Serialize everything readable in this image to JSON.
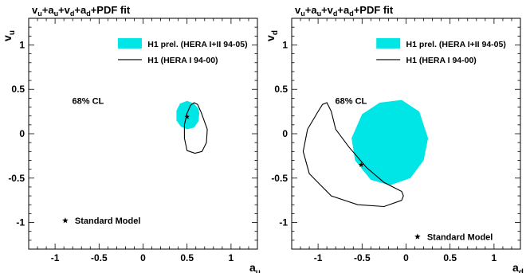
{
  "chart_data": [
    {
      "type": "scatter",
      "title": {
        "base": "v",
        "sub1": "u",
        "mid1": "+a",
        "sub2": "u",
        "mid2": "+v",
        "sub3": "d",
        "mid3": "+a",
        "sub4": "d",
        "tail": "+PDF fit"
      },
      "xlabel": {
        "base": "a",
        "sub": "u"
      },
      "ylabel": {
        "base": "v",
        "sub": "u"
      },
      "xlim": [
        -1.3,
        1.3
      ],
      "ylim": [
        -1.3,
        1.3
      ],
      "xticks": [
        {
          "v": -1,
          "label": "-1"
        },
        {
          "v": -0.5,
          "label": "-0.5"
        },
        {
          "v": 0,
          "label": "0"
        },
        {
          "v": 0.5,
          "label": "0.5"
        },
        {
          "v": 1,
          "label": "1"
        }
      ],
      "yticks": [
        {
          "v": -1,
          "label": "-1"
        },
        {
          "v": -0.5,
          "label": "-0.5"
        },
        {
          "v": 0,
          "label": "0"
        },
        {
          "v": 0.5,
          "label": "0.5"
        },
        {
          "v": 1,
          "label": "1"
        }
      ],
      "cl_label": "68% CL",
      "legend": [
        {
          "label": "H1 prel. (HERA I+II 94-05)",
          "style": "filled",
          "color": "#00e5e5"
        },
        {
          "label": "H1 (HERA I 94-00)",
          "style": "line",
          "color": "#000000"
        }
      ],
      "sm_label": "Standard Model",
      "sm_point": {
        "x": 0.5,
        "y": 0.19
      },
      "filled_contour": {
        "color": "#00e5e5",
        "points": [
          [
            0.64,
            0.23
          ],
          [
            0.63,
            0.14
          ],
          [
            0.58,
            0.07
          ],
          [
            0.5,
            0.05
          ],
          [
            0.43,
            0.08
          ],
          [
            0.38,
            0.15
          ],
          [
            0.38,
            0.26
          ],
          [
            0.42,
            0.34
          ],
          [
            0.5,
            0.37
          ],
          [
            0.58,
            0.34
          ],
          [
            0.63,
            0.28
          ]
        ]
      },
      "line_contour": {
        "color": "#000000",
        "points": [
          [
            0.58,
            0.35
          ],
          [
            0.62,
            0.33
          ],
          [
            0.66,
            0.24
          ],
          [
            0.73,
            0.05
          ],
          [
            0.72,
            -0.1
          ],
          [
            0.67,
            -0.2
          ],
          [
            0.59,
            -0.22
          ],
          [
            0.5,
            -0.19
          ],
          [
            0.47,
            -0.05
          ],
          [
            0.47,
            0.1
          ],
          [
            0.5,
            0.23
          ],
          [
            0.54,
            0.32
          ]
        ]
      }
    },
    {
      "type": "scatter",
      "title": {
        "base": "v",
        "sub1": "u",
        "mid1": "+a",
        "sub2": "u",
        "mid2": "+v",
        "sub3": "d",
        "mid3": "+a",
        "sub4": "d",
        "tail": "+PDF fit"
      },
      "xlabel": {
        "base": "a",
        "sub": "d"
      },
      "ylabel": {
        "base": "v",
        "sub": "d"
      },
      "xlim": [
        -1.3,
        1.3
      ],
      "ylim": [
        -1.3,
        1.3
      ],
      "xticks": [
        {
          "v": -1,
          "label": "-1"
        },
        {
          "v": -0.5,
          "label": "-0.5"
        },
        {
          "v": 0,
          "label": "0"
        },
        {
          "v": 0.5,
          "label": "0.5"
        },
        {
          "v": 1,
          "label": "1"
        }
      ],
      "yticks": [
        {
          "v": -1,
          "label": "-1"
        },
        {
          "v": -0.5,
          "label": "-0.5"
        },
        {
          "v": 0,
          "label": "0"
        },
        {
          "v": 0.5,
          "label": "0.5"
        },
        {
          "v": 1,
          "label": "1"
        }
      ],
      "cl_label": "68% CL",
      "legend": [
        {
          "label": "H1 prel. (HERA I+II 94-05)",
          "style": "filled",
          "color": "#00e5e5"
        },
        {
          "label": "H1 (HERA I 94-00)",
          "style": "line",
          "color": "#000000"
        }
      ],
      "sm_label": "Standard Model",
      "sm_point": {
        "x": -0.51,
        "y": -0.35
      },
      "filled_contour": {
        "color": "#00e5e5",
        "points": [
          [
            0.25,
            -0.05
          ],
          [
            0.2,
            -0.3
          ],
          [
            0.05,
            -0.5
          ],
          [
            -0.18,
            -0.58
          ],
          [
            -0.4,
            -0.52
          ],
          [
            -0.58,
            -0.3
          ],
          [
            -0.62,
            -0.05
          ],
          [
            -0.5,
            0.22
          ],
          [
            -0.3,
            0.35
          ],
          [
            -0.05,
            0.38
          ],
          [
            0.15,
            0.25
          ]
        ]
      },
      "line_contour": {
        "color": "#000000",
        "points": [
          [
            -0.9,
            0.35
          ],
          [
            -0.85,
            0.25
          ],
          [
            -0.8,
            0.05
          ],
          [
            -0.65,
            -0.15
          ],
          [
            -0.45,
            -0.38
          ],
          [
            -0.25,
            -0.55
          ],
          [
            -0.05,
            -0.65
          ],
          [
            -0.03,
            -0.7
          ],
          [
            -0.05,
            -0.75
          ],
          [
            -0.25,
            -0.82
          ],
          [
            -0.55,
            -0.8
          ],
          [
            -0.85,
            -0.7
          ],
          [
            -1.1,
            -0.45
          ],
          [
            -1.17,
            -0.2
          ],
          [
            -1.12,
            0.05
          ],
          [
            -1.0,
            0.25
          ],
          [
            -0.95,
            0.33
          ]
        ]
      }
    }
  ]
}
